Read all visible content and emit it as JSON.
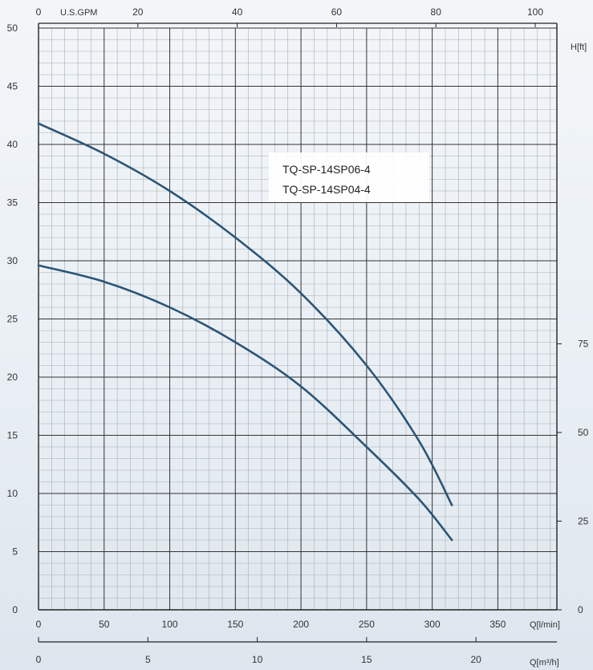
{
  "chart_data": {
    "type": "line",
    "title": "",
    "xlabel": "Q[l/min]",
    "ylabel": "",
    "xlim": [
      0,
      395
    ],
    "ylim": [
      0,
      50
    ],
    "x_ticks": [
      "0",
      "50",
      "100",
      "150",
      "200",
      "250",
      "300",
      "350"
    ],
    "y_ticks": [
      "0",
      "5",
      "10",
      "15",
      "20",
      "25",
      "30",
      "35",
      "40",
      "45",
      "50"
    ],
    "top_axis": {
      "label": "U.S.GPM",
      "ticks": [
        "0",
        "20",
        "40",
        "60",
        "80",
        "100"
      ]
    },
    "right_axis": {
      "label": "H[ft]",
      "ticks": [
        "0",
        "25",
        "50",
        "75"
      ]
    },
    "bottom_axis2": {
      "label": "Q[m³/h]",
      "ticks": [
        "0",
        "5",
        "10",
        "15",
        "20"
      ]
    },
    "grid": true,
    "legend": [
      "TQ-SP-14SP06-4",
      "TQ-SP-14SP04-4"
    ],
    "series": [
      {
        "name": "TQ-SP-14SP06-4",
        "x": [
          0,
          50,
          100,
          150,
          200,
          250,
          290,
          315
        ],
        "y": [
          41.8,
          39.2,
          36.0,
          32.0,
          27.2,
          21.0,
          14.5,
          9.0
        ]
      },
      {
        "name": "TQ-SP-14SP04-4",
        "x": [
          0,
          50,
          100,
          150,
          200,
          250,
          290,
          315
        ],
        "y": [
          29.6,
          28.2,
          26.0,
          23.0,
          19.2,
          14.0,
          9.5,
          6.0
        ]
      }
    ],
    "colors": {
      "curve": "#2b5576",
      "grid_major": "#333333",
      "grid_minor": "#a8aeb4"
    }
  }
}
